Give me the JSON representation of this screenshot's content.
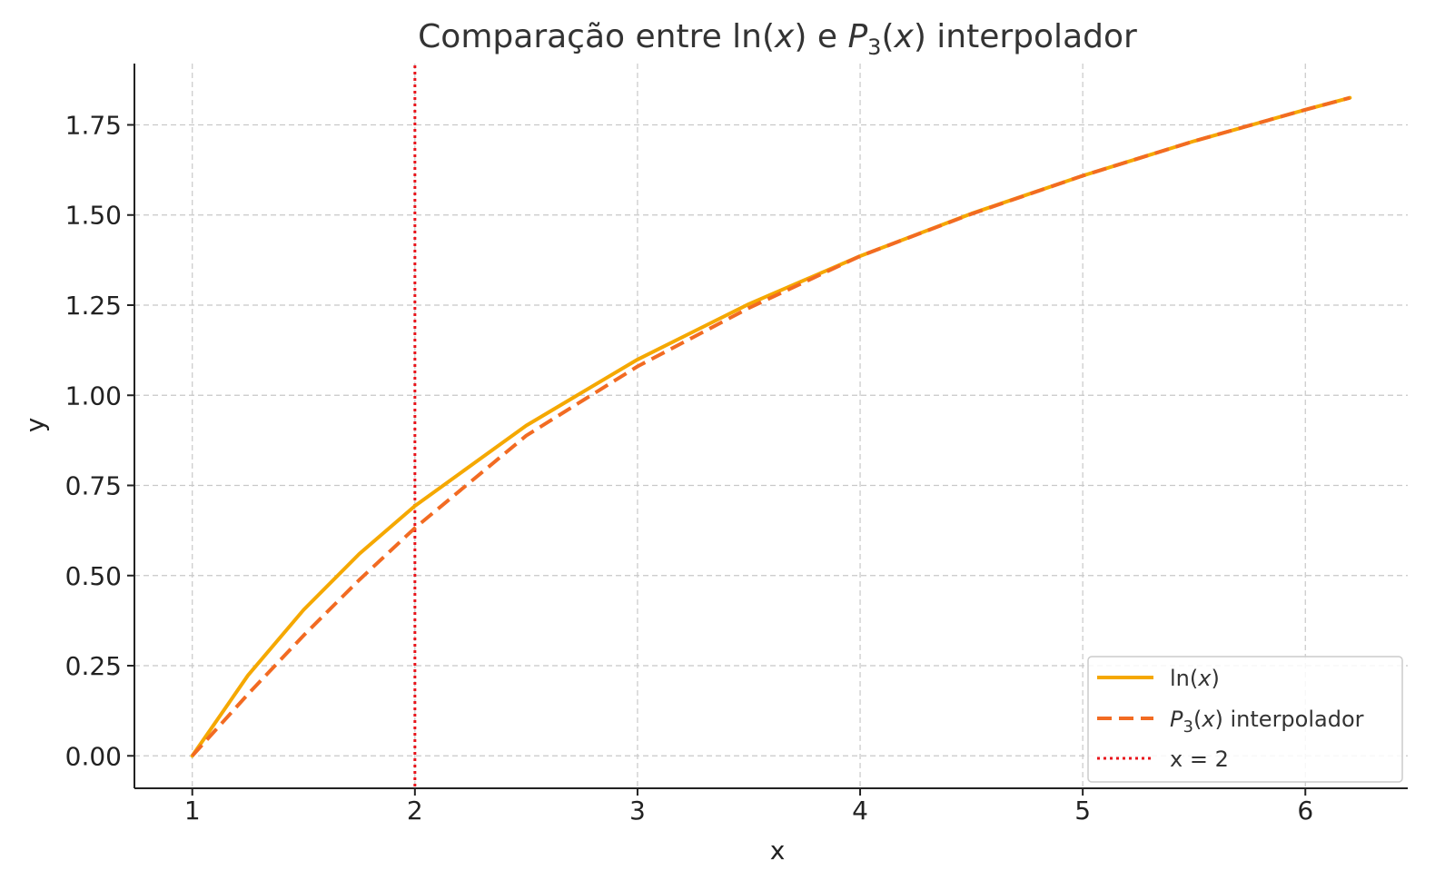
{
  "chart_data": {
    "type": "line",
    "title_parts": {
      "a": "Comparação entre ln(",
      "b": "x",
      "c": ") e ",
      "d": "P",
      "e": "3",
      "f": "(",
      "g": "x",
      "h": ") interpolador"
    },
    "xlabel": "x",
    "ylabel": "y",
    "xlim": [
      0.74,
      6.46
    ],
    "ylim": [
      -0.09,
      1.92
    ],
    "xticks": [
      1,
      2,
      3,
      4,
      5,
      6
    ],
    "yticks": [
      0.0,
      0.25,
      0.5,
      0.75,
      1.0,
      1.25,
      1.5,
      1.75
    ],
    "ytick_labels": [
      "0.00",
      "0.25",
      "0.50",
      "0.75",
      "1.00",
      "1.25",
      "1.50",
      "1.75"
    ],
    "xtick_labels": [
      "1",
      "2",
      "3",
      "4",
      "5",
      "6"
    ],
    "grid": true,
    "legend_position": "lower-right",
    "series": [
      {
        "name_parts": {
          "a": "ln(",
          "b": "x",
          "c": ")"
        },
        "color": "#F5A800",
        "style": "solid",
        "x": [
          1.0,
          1.25,
          1.5,
          1.75,
          2.0,
          2.5,
          3.0,
          3.5,
          4.0,
          4.5,
          5.0,
          5.5,
          6.0,
          6.2
        ],
        "y": [
          0.0,
          0.223,
          0.405,
          0.56,
          0.693,
          0.916,
          1.099,
          1.253,
          1.386,
          1.504,
          1.609,
          1.705,
          1.792,
          1.825
        ]
      },
      {
        "name_parts": {
          "a": "P",
          "b": "3",
          "c": "(",
          "d": "x",
          "e": ") interpolador"
        },
        "color": "#F26B22",
        "style": "dashed",
        "x": [
          1.0,
          1.25,
          1.5,
          1.75,
          2.0,
          2.5,
          3.0,
          3.5,
          4.0,
          4.5,
          5.0,
          5.5,
          6.0,
          6.2
        ],
        "y": [
          0.0,
          0.171,
          0.334,
          0.488,
          0.632,
          0.888,
          1.08,
          1.242,
          1.386,
          1.503,
          1.609,
          1.705,
          1.792,
          1.825
        ]
      }
    ],
    "vline": {
      "name": "x = 2",
      "x": 2,
      "color": "#E8141B",
      "style": "dotted"
    }
  }
}
